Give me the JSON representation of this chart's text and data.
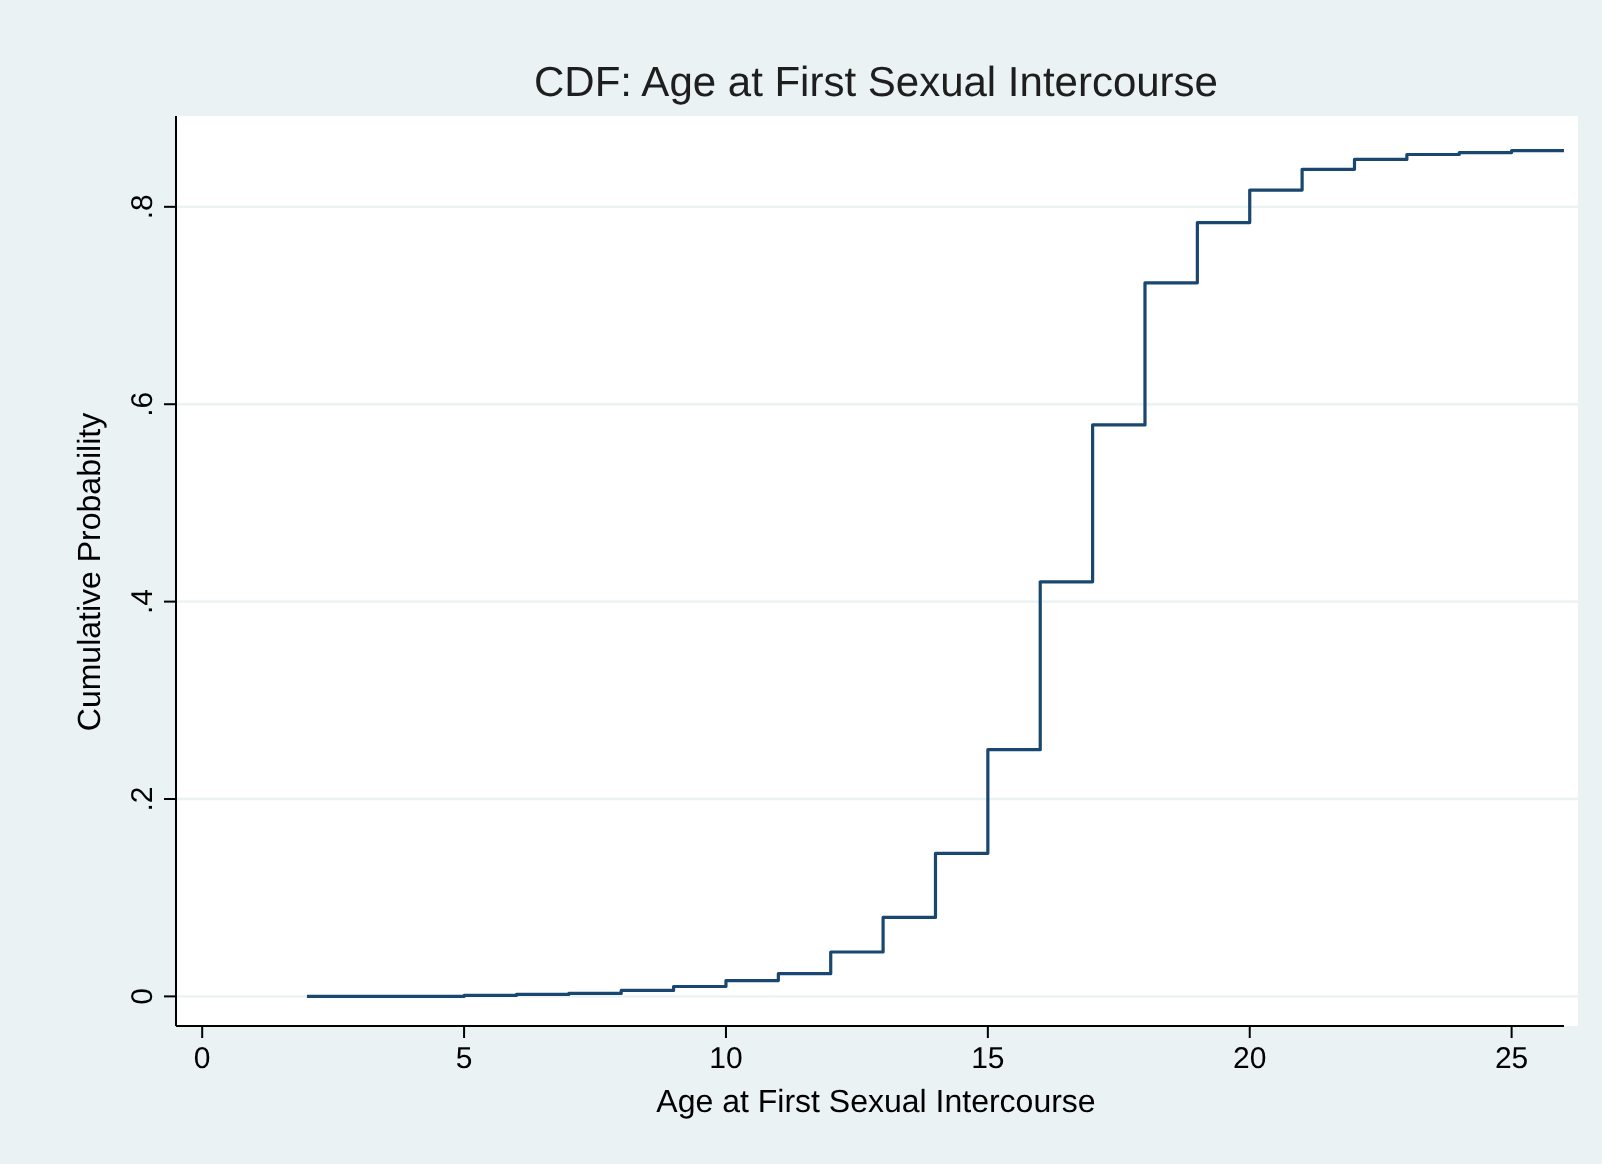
{
  "chart_data": {
    "type": "step",
    "title": "CDF: Age at First Sexual Intercourse",
    "xlabel": "Age at First Sexual Intercourse",
    "ylabel": "Cumulative Probability",
    "x": [
      2,
      3,
      4,
      5,
      6,
      7,
      8,
      9,
      10,
      11,
      12,
      13,
      14,
      15,
      16,
      17,
      18,
      19,
      20,
      21,
      22,
      23,
      24,
      25,
      26
    ],
    "series": [
      {
        "color": "#1a476f",
        "values": [
          0,
          0,
          0,
          0.001,
          0.002,
          0.003,
          0.006,
          0.01,
          0.016,
          0.023,
          0.045,
          0.08,
          0.145,
          0.25,
          0.42,
          0.579,
          0.723,
          0.784,
          0.817,
          0.838,
          0.848,
          0.853,
          0.855,
          0.857,
          0.857
        ]
      }
    ],
    "xlim": [
      -0.5,
      26
    ],
    "xticks": [
      0,
      5,
      10,
      15,
      20,
      25
    ],
    "ylim": [
      -0.03,
      0.89
    ],
    "yticks": [
      0,
      {
        "value": 0.2,
        "label": ".2"
      },
      {
        "value": 0.4,
        "label": ".4"
      },
      {
        "value": 0.6,
        "label": ".6"
      },
      {
        "value": 0.8,
        "label": ".8"
      }
    ],
    "grid": "y"
  }
}
